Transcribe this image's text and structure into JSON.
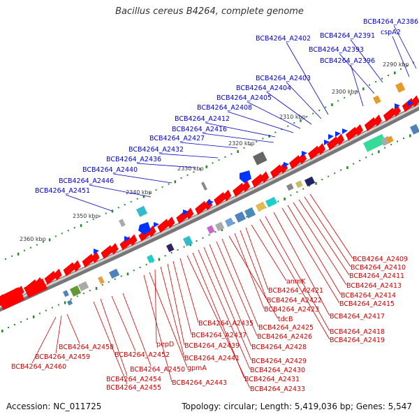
{
  "title": "Bacillus cereus B4264, complete genome",
  "footer": {
    "accession": "Accession: NC_011725",
    "summary": "Topology: circular; Length: 5,419,036 bp; Genes: 5,547"
  },
  "colors": {
    "background": "#ffffff",
    "backbone_dark": "#777777",
    "backbone_light": "#cfcfcf",
    "forward_strand_label": "#0000cc",
    "reverse_strand_label": "#cc0000",
    "forward_strand_gene": "#0033ff",
    "reverse_strand_gene": "#ff0000",
    "ruler_dots": "#2a8a2a",
    "scale_text": "#333333"
  },
  "scale_labels": [
    "2290 kbp",
    "2300 kbp",
    "2310 kbp",
    "2320 kbp",
    "2330 kbp",
    "2340 kbp",
    "2350 kbp",
    "2360 kbp"
  ],
  "forward_genes": [
    "BCB4264_A2386",
    "cspA2",
    "BCB4264_A2391",
    "BCB4264_A2393",
    "BCB4264_A2396",
    "BCB4264_A2402",
    "BCB4264_A2403",
    "BCB4264_A2404",
    "BCB4264_A2405",
    "BCB4264_A2408",
    "BCB4264_A2412",
    "BCB4264_A2416",
    "BCB4264_A2427",
    "BCB4264_A2432",
    "BCB4264_A2436",
    "BCB4264_A2440",
    "BCB4264_A2446",
    "BCB4264_A2451"
  ],
  "reverse_genes_right": [
    "BCB4264_A2409",
    "BCB4264_A2410",
    "BCB4264_A2411",
    "BCB4264_A2413",
    "BCB4264_A2414",
    "BCB4264_A2415",
    "BCB4264_A2417",
    "BCB4264_A2418",
    "BCB4264_A2419"
  ],
  "reverse_genes_middle": [
    "anmK",
    "BCB4264_A2421",
    "BCB4264_A2422",
    "BCB4264_A2423",
    "tdcB",
    "BCB4264_A2425",
    "BCB4264_A2426",
    "BCB4264_A2428",
    "BCB4264_A2429",
    "BCB4264_A2430",
    "BCB4264_A2431",
    "BCB4264_A2433",
    "BCB4264_A2435",
    "BCB4264_A2437",
    "BCB4264_A2439",
    "BCB4264_A2441",
    "pepD",
    "gpmA",
    "BCB4264_A2443"
  ],
  "reverse_genes_left": [
    "BCB4264_A2450",
    "BCB4264_A2452",
    "BCB4264_A2454",
    "BCB4264_A2455",
    "BCB4264_A2458",
    "BCB4264_A2459",
    "BCB4264_A2460"
  ]
}
